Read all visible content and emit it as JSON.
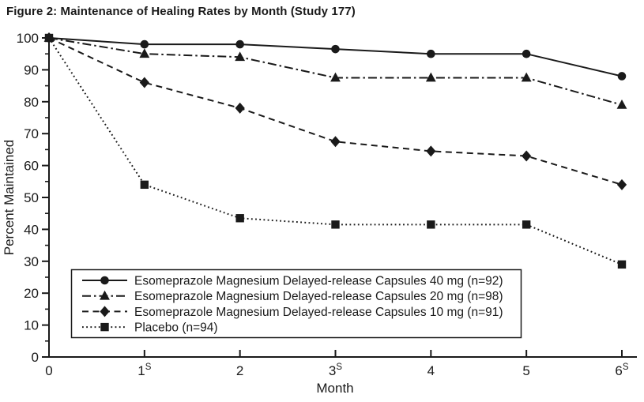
{
  "figure": {
    "title": "Figure 2: Maintenance of Healing Rates by Month (Study 177)"
  },
  "chart_data": {
    "type": "line",
    "title": "Figure 2: Maintenance of Healing Rates by Month (Study 177)",
    "xlabel": "Month",
    "ylabel": "Percent Maintained",
    "x": [
      0,
      1,
      2,
      3,
      4,
      5,
      6
    ],
    "x_tick_labels": [
      {
        "text": "0",
        "sup": ""
      },
      {
        "text": "1",
        "sup": "S"
      },
      {
        "text": "2",
        "sup": ""
      },
      {
        "text": "3",
        "sup": "S"
      },
      {
        "text": "4",
        "sup": ""
      },
      {
        "text": "5",
        "sup": ""
      },
      {
        "text": "6",
        "sup": "S"
      }
    ],
    "ylim": [
      0,
      100
    ],
    "xlim": [
      0,
      6
    ],
    "y_major_ticks": [
      0,
      10,
      20,
      30,
      40,
      50,
      60,
      70,
      80,
      90,
      100
    ],
    "y_minor_ticks": [
      5,
      15,
      25,
      35,
      45,
      55,
      65,
      75,
      85,
      95
    ],
    "grid": false,
    "legend_position": "inside-bottom-left",
    "ink_color": "#1a1a1a",
    "background_color": "#ffffff",
    "series": [
      {
        "name": "Esomeprazole Magnesium Delayed-release Capsules 40 mg (n=92)",
        "id": "esomeprazole-40mg",
        "marker": "circle",
        "line_style": "solid",
        "values": [
          100,
          98,
          98,
          96.5,
          95,
          95,
          88
        ]
      },
      {
        "name": "Esomeprazole Magnesium Delayed-release Capsules 20 mg (n=98)",
        "id": "esomeprazole-20mg",
        "marker": "triangle",
        "line_style": "dashdot",
        "values": [
          100,
          95,
          94,
          87.5,
          87.5,
          87.5,
          79
        ]
      },
      {
        "name": "Esomeprazole Magnesium Delayed-release Capsules 10 mg (n=91)",
        "id": "esomeprazole-10mg",
        "marker": "diamond",
        "line_style": "dashed",
        "values": [
          100,
          86,
          78,
          67.5,
          64.5,
          63,
          54
        ]
      },
      {
        "name": "Placebo (n=94)",
        "id": "placebo",
        "marker": "square",
        "line_style": "dotted",
        "values": [
          100,
          54,
          43.5,
          41.5,
          41.5,
          41.5,
          29
        ]
      }
    ]
  }
}
